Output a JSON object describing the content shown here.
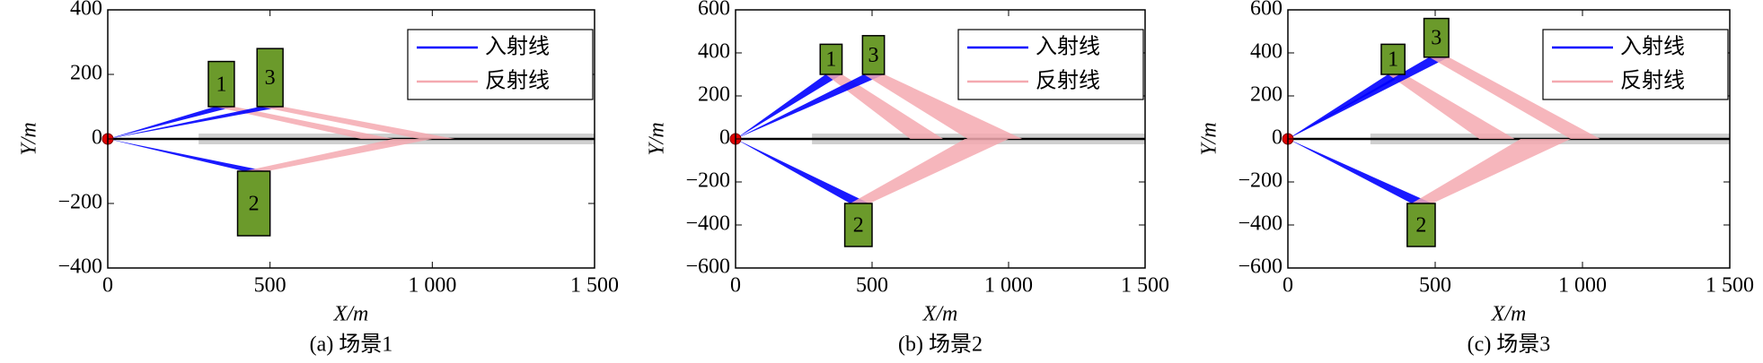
{
  "chart_data": [
    {
      "type": "ray",
      "caption": "(a) 场景1",
      "xlabel": "X/m",
      "ylabel": "Y/m",
      "xlim": [
        0,
        1500
      ],
      "ylim": [
        -400,
        400
      ],
      "xticks": [
        0,
        500,
        {
          "value": 1000,
          "label": "1 000"
        },
        {
          "value": 1500,
          "label": "1 500"
        }
      ],
      "yticks": [
        {
          "value": -400,
          "label": "−400"
        },
        {
          "value": -200,
          "label": "−200"
        },
        0,
        200,
        400
      ],
      "source": [
        0,
        0
      ],
      "road": [
        280,
        1500
      ],
      "legend": "upper right",
      "building_color": "#6b9a2b",
      "series": [
        {
          "name": "入射线",
          "color": "#0000ff"
        },
        {
          "name": "反射线",
          "color": "#f4a9b0"
        }
      ],
      "buildings": [
        {
          "label": "1",
          "x": [
            310,
            390
          ],
          "y": [
            100,
            240
          ],
          "hit": [
            330,
            390
          ],
          "ground": [
            780,
            880
          ]
        },
        {
          "label": "2",
          "x": [
            400,
            500
          ],
          "y": [
            -300,
            -100
          ],
          "hit": [
            420,
            490
          ],
          "ground": [
            880,
            1000
          ]
        },
        {
          "label": "3",
          "x": [
            460,
            540
          ],
          "y": [
            100,
            280
          ],
          "hit": [
            470,
            540
          ],
          "ground": [
            960,
            1070
          ]
        }
      ]
    },
    {
      "type": "ray",
      "caption": "(b) 场景2",
      "xlabel": "X/m",
      "ylabel": "Y/m",
      "xlim": [
        0,
        1500
      ],
      "ylim": [
        -600,
        600
      ],
      "xticks": [
        0,
        500,
        {
          "value": 1000,
          "label": "1 000"
        },
        {
          "value": 1500,
          "label": "1 500"
        }
      ],
      "yticks": [
        {
          "value": -600,
          "label": "−600"
        },
        {
          "value": -400,
          "label": "−400"
        },
        {
          "value": -200,
          "label": "−200"
        },
        0,
        200,
        400,
        600
      ],
      "source": [
        0,
        0
      ],
      "road": [
        280,
        1500
      ],
      "legend": "upper right",
      "building_color": "#6b9a2b",
      "series": [
        {
          "name": "入射线",
          "color": "#0000ff"
        },
        {
          "name": "反射线",
          "color": "#f4a9b0"
        }
      ],
      "buildings": [
        {
          "label": "1",
          "x": [
            310,
            390
          ],
          "y": [
            300,
            440
          ],
          "hit": [
            330,
            390
          ],
          "ground": [
            640,
            760
          ]
        },
        {
          "label": "2",
          "x": [
            400,
            500
          ],
          "y": [
            -500,
            -300
          ],
          "hit": [
            420,
            490
          ],
          "ground": [
            840,
            1000
          ]
        },
        {
          "label": "3",
          "x": [
            465,
            545
          ],
          "y": [
            300,
            480
          ],
          "hit": [
            470,
            545
          ],
          "ground": [
            850,
            1050
          ]
        }
      ]
    },
    {
      "type": "ray",
      "caption": "(c) 场景3",
      "xlabel": "X/m",
      "ylabel": "Y/m",
      "xlim": [
        0,
        1500
      ],
      "ylim": [
        -600,
        600
      ],
      "xticks": [
        0,
        500,
        {
          "value": 1000,
          "label": "1 000"
        },
        {
          "value": 1500,
          "label": "1 500"
        }
      ],
      "yticks": [
        {
          "value": -600,
          "label": "−600"
        },
        {
          "value": -400,
          "label": "−400"
        },
        {
          "value": -200,
          "label": "−200"
        },
        0,
        200,
        400,
        600
      ],
      "source": [
        0,
        0
      ],
      "road": [
        280,
        1500
      ],
      "legend": "upper right",
      "building_color": "#6b9a2b",
      "series": [
        {
          "name": "入射线",
          "color": "#0000ff"
        },
        {
          "name": "反射线",
          "color": "#f4a9b0"
        }
      ],
      "buildings": [
        {
          "label": "1",
          "x": [
            317,
            397
          ],
          "y": [
            300,
            440
          ],
          "hit": [
            340,
            397
          ],
          "ground": [
            650,
            770
          ]
        },
        {
          "label": "2",
          "x": [
            405,
            500
          ],
          "y": [
            -500,
            -300
          ],
          "hit": [
            420,
            490
          ],
          "ground": [
            790,
            960
          ]
        },
        {
          "label": "3",
          "x": [
            462,
            546
          ],
          "y": [
            380,
            560
          ],
          "hit": [
            480,
            546
          ],
          "ground": [
            960,
            1060
          ]
        }
      ]
    }
  ]
}
